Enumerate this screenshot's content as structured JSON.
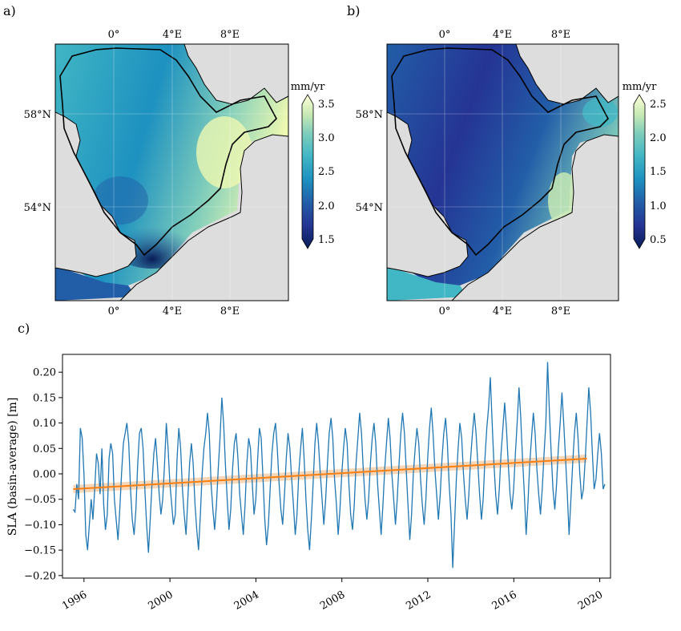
{
  "figure": {
    "panel_a": "a)",
    "panel_b": "b)",
    "panel_c": "c)"
  },
  "colormap": [
    "#081d58",
    "#253494",
    "#225ea8",
    "#1d91c0",
    "#41b6c4",
    "#7fcdbb",
    "#c7e9b4",
    "#edf8b1",
    "#ffffd9"
  ],
  "colors": {
    "land": "#dddddd",
    "series": "#1f77b4",
    "trend": "#ff7f0e",
    "trend_band": "#f5c9a0"
  },
  "map_a": {
    "lon_labels": [
      "0°",
      "4°E",
      "8°E"
    ],
    "lat_labels": [
      "58°N",
      "54°N"
    ],
    "colorbar": {
      "unit": "mm/yr",
      "min": 1.5,
      "max": 3.5,
      "ticks": [
        "3.5",
        "3.0",
        "2.5",
        "2.0",
        "1.5"
      ]
    }
  },
  "map_b": {
    "lon_labels": [
      "0°",
      "4°E",
      "8°E"
    ],
    "lat_labels": [
      "58°N",
      "54°N"
    ],
    "colorbar": {
      "unit": "mm/yr",
      "min": 0.5,
      "max": 2.5,
      "ticks": [
        "2.5",
        "2.0",
        "1.5",
        "1.0",
        "0.5"
      ]
    }
  },
  "chart_data": {
    "type": "line",
    "ylabel": "SLA (basin-average) [m]",
    "xlim": [
      1995.0,
      2020.5
    ],
    "ylim": [
      -0.205,
      0.235
    ],
    "xticks": [
      "1996",
      "2000",
      "2004",
      "2008",
      "2012",
      "2016",
      "2020"
    ],
    "yticks": [
      "0.20",
      "0.15",
      "0.10",
      "0.05",
      "0.00",
      "−0.05",
      "−0.10",
      "−0.15",
      "−0.20"
    ],
    "grid": false,
    "series": [
      {
        "start_year": 1995.5,
        "step_years": 0.0833,
        "values": [
          -0.07,
          -0.075,
          -0.02,
          -0.05,
          0.09,
          0.07,
          0.0,
          -0.12,
          -0.15,
          -0.1,
          -0.05,
          -0.09,
          -0.03,
          0.04,
          0.02,
          -0.04,
          0.05,
          -0.06,
          -0.11,
          -0.08,
          0.03,
          0.06,
          0.04,
          -0.05,
          -0.09,
          -0.13,
          -0.07,
          0.0,
          0.06,
          0.08,
          0.1,
          0.06,
          -0.03,
          -0.09,
          -0.12,
          -0.07,
          0.02,
          0.08,
          0.09,
          0.05,
          -0.03,
          -0.1,
          -0.155,
          -0.09,
          -0.02,
          0.04,
          0.07,
          0.02,
          -0.04,
          -0.08,
          -0.05,
          0.02,
          0.1,
          0.05,
          -0.02,
          -0.06,
          -0.1,
          -0.08,
          0.03,
          0.09,
          0.05,
          -0.03,
          -0.08,
          -0.12,
          -0.05,
          0.02,
          0.06,
          0.02,
          -0.06,
          -0.11,
          -0.15,
          -0.08,
          0.0,
          0.05,
          0.08,
          0.12,
          0.08,
          -0.02,
          -0.07,
          -0.11,
          -0.06,
          0.01,
          0.07,
          0.15,
          0.1,
          0.02,
          -0.05,
          -0.11,
          -0.07,
          0.01,
          0.06,
          0.08,
          0.03,
          -0.04,
          -0.08,
          -0.12,
          -0.06,
          0.02,
          0.07,
          0.05,
          -0.02,
          -0.08,
          -0.05,
          0.03,
          0.09,
          0.07,
          -0.01,
          -0.09,
          -0.14,
          -0.1,
          -0.03,
          0.04,
          0.08,
          0.1,
          0.05,
          -0.02,
          -0.07,
          -0.1,
          -0.04,
          0.03,
          0.08,
          0.05,
          -0.01,
          -0.06,
          -0.12,
          -0.08,
          0.0,
          0.05,
          0.09,
          0.03,
          -0.05,
          -0.11,
          -0.15,
          -0.09,
          -0.02,
          0.06,
          0.1,
          0.06,
          0.0,
          -0.05,
          -0.1,
          -0.05,
          0.02,
          0.08,
          0.11,
          0.07,
          -0.01,
          -0.06,
          -0.12,
          -0.07,
          0.0,
          0.05,
          0.09,
          0.06,
          -0.02,
          -0.08,
          -0.11,
          -0.06,
          0.02,
          0.07,
          0.12,
          0.08,
          0.01,
          -0.05,
          -0.09,
          -0.05,
          0.02,
          0.07,
          0.1,
          0.06,
          -0.02,
          -0.07,
          -0.12,
          -0.06,
          0.01,
          0.06,
          0.11,
          0.07,
          0.0,
          -0.05,
          -0.1,
          -0.05,
          0.02,
          0.08,
          0.12,
          0.08,
          0.01,
          -0.06,
          -0.13,
          -0.08,
          0.0,
          0.05,
          0.09,
          0.06,
          -0.01,
          -0.06,
          -0.1,
          -0.05,
          0.03,
          0.09,
          0.13,
          0.08,
          0.01,
          -0.04,
          -0.09,
          -0.04,
          0.03,
          0.08,
          0.11,
          0.06,
          -0.02,
          -0.08,
          -0.185,
          -0.1,
          -0.01,
          0.05,
          0.1,
          0.07,
          0.0,
          -0.05,
          -0.09,
          -0.04,
          0.03,
          0.08,
          0.12,
          0.08,
          0.02,
          -0.04,
          -0.09,
          -0.05,
          0.03,
          0.09,
          0.13,
          0.19,
          0.1,
          0.02,
          -0.04,
          -0.08,
          -0.03,
          0.04,
          0.09,
          0.14,
          0.09,
          0.02,
          -0.04,
          -0.07,
          -0.03,
          0.04,
          0.1,
          0.17,
          0.11,
          0.03,
          -0.04,
          -0.12,
          -0.06,
          0.02,
          0.07,
          0.12,
          0.08,
          0.01,
          -0.04,
          -0.08,
          -0.03,
          0.04,
          0.1,
          0.22,
          0.12,
          0.04,
          -0.03,
          -0.07,
          -0.02,
          0.05,
          0.1,
          0.16,
          0.1,
          0.03,
          -0.04,
          -0.12,
          -0.05,
          0.02,
          0.08,
          0.12,
          0.07,
          0.0,
          -0.05,
          -0.03,
          0.03,
          0.1,
          0.17,
          0.12,
          0.04,
          -0.03,
          -0.01,
          0.04,
          0.08,
          0.04,
          -0.03,
          -0.02
        ]
      }
    ],
    "trend": {
      "start": [
        1995.5,
        -0.03
      ],
      "end": [
        2019.4,
        0.03
      ],
      "band": 0.008
    }
  }
}
